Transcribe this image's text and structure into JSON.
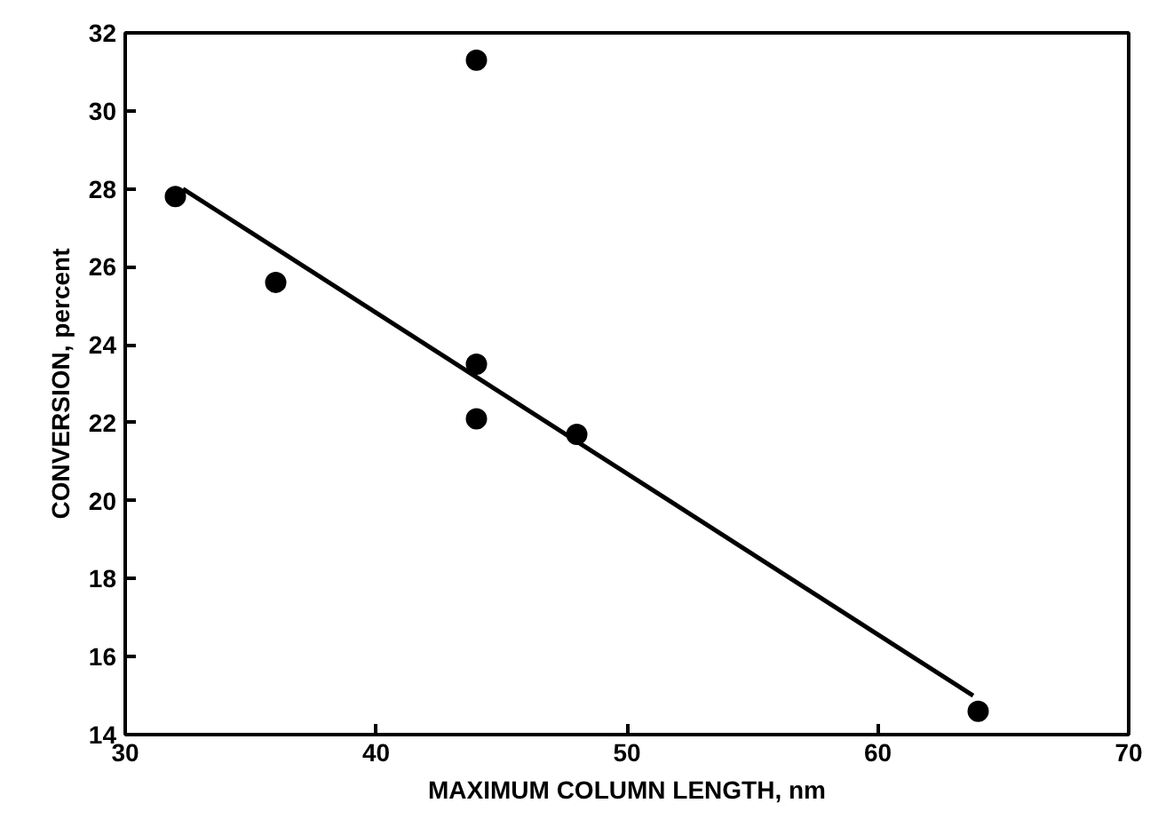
{
  "chart_data": {
    "type": "scatter",
    "xlabel": "MAXIMUM COLUMN LENGTH, nm",
    "ylabel": "CONVERSION, percent",
    "xlim": [
      30,
      70
    ],
    "xticks": [
      30,
      40,
      50,
      60,
      70
    ],
    "ylim": [
      14,
      32
    ],
    "yticks": [
      14,
      16,
      18,
      20,
      22,
      24,
      26,
      28,
      30,
      32
    ],
    "grid": false,
    "series": [
      {
        "marker": "circle",
        "color": "#000000",
        "x": [
          32,
          36,
          44,
          44,
          44,
          48,
          64
        ],
        "values": [
          27.8,
          25.6,
          31.3,
          23.5,
          22.1,
          21.7,
          14.6
        ]
      },
      {
        "type": "line",
        "color": "#000000",
        "x": [
          32.3,
          63.8
        ],
        "values": [
          28.0,
          15.0
        ],
        "line_style": "solid"
      }
    ]
  }
}
